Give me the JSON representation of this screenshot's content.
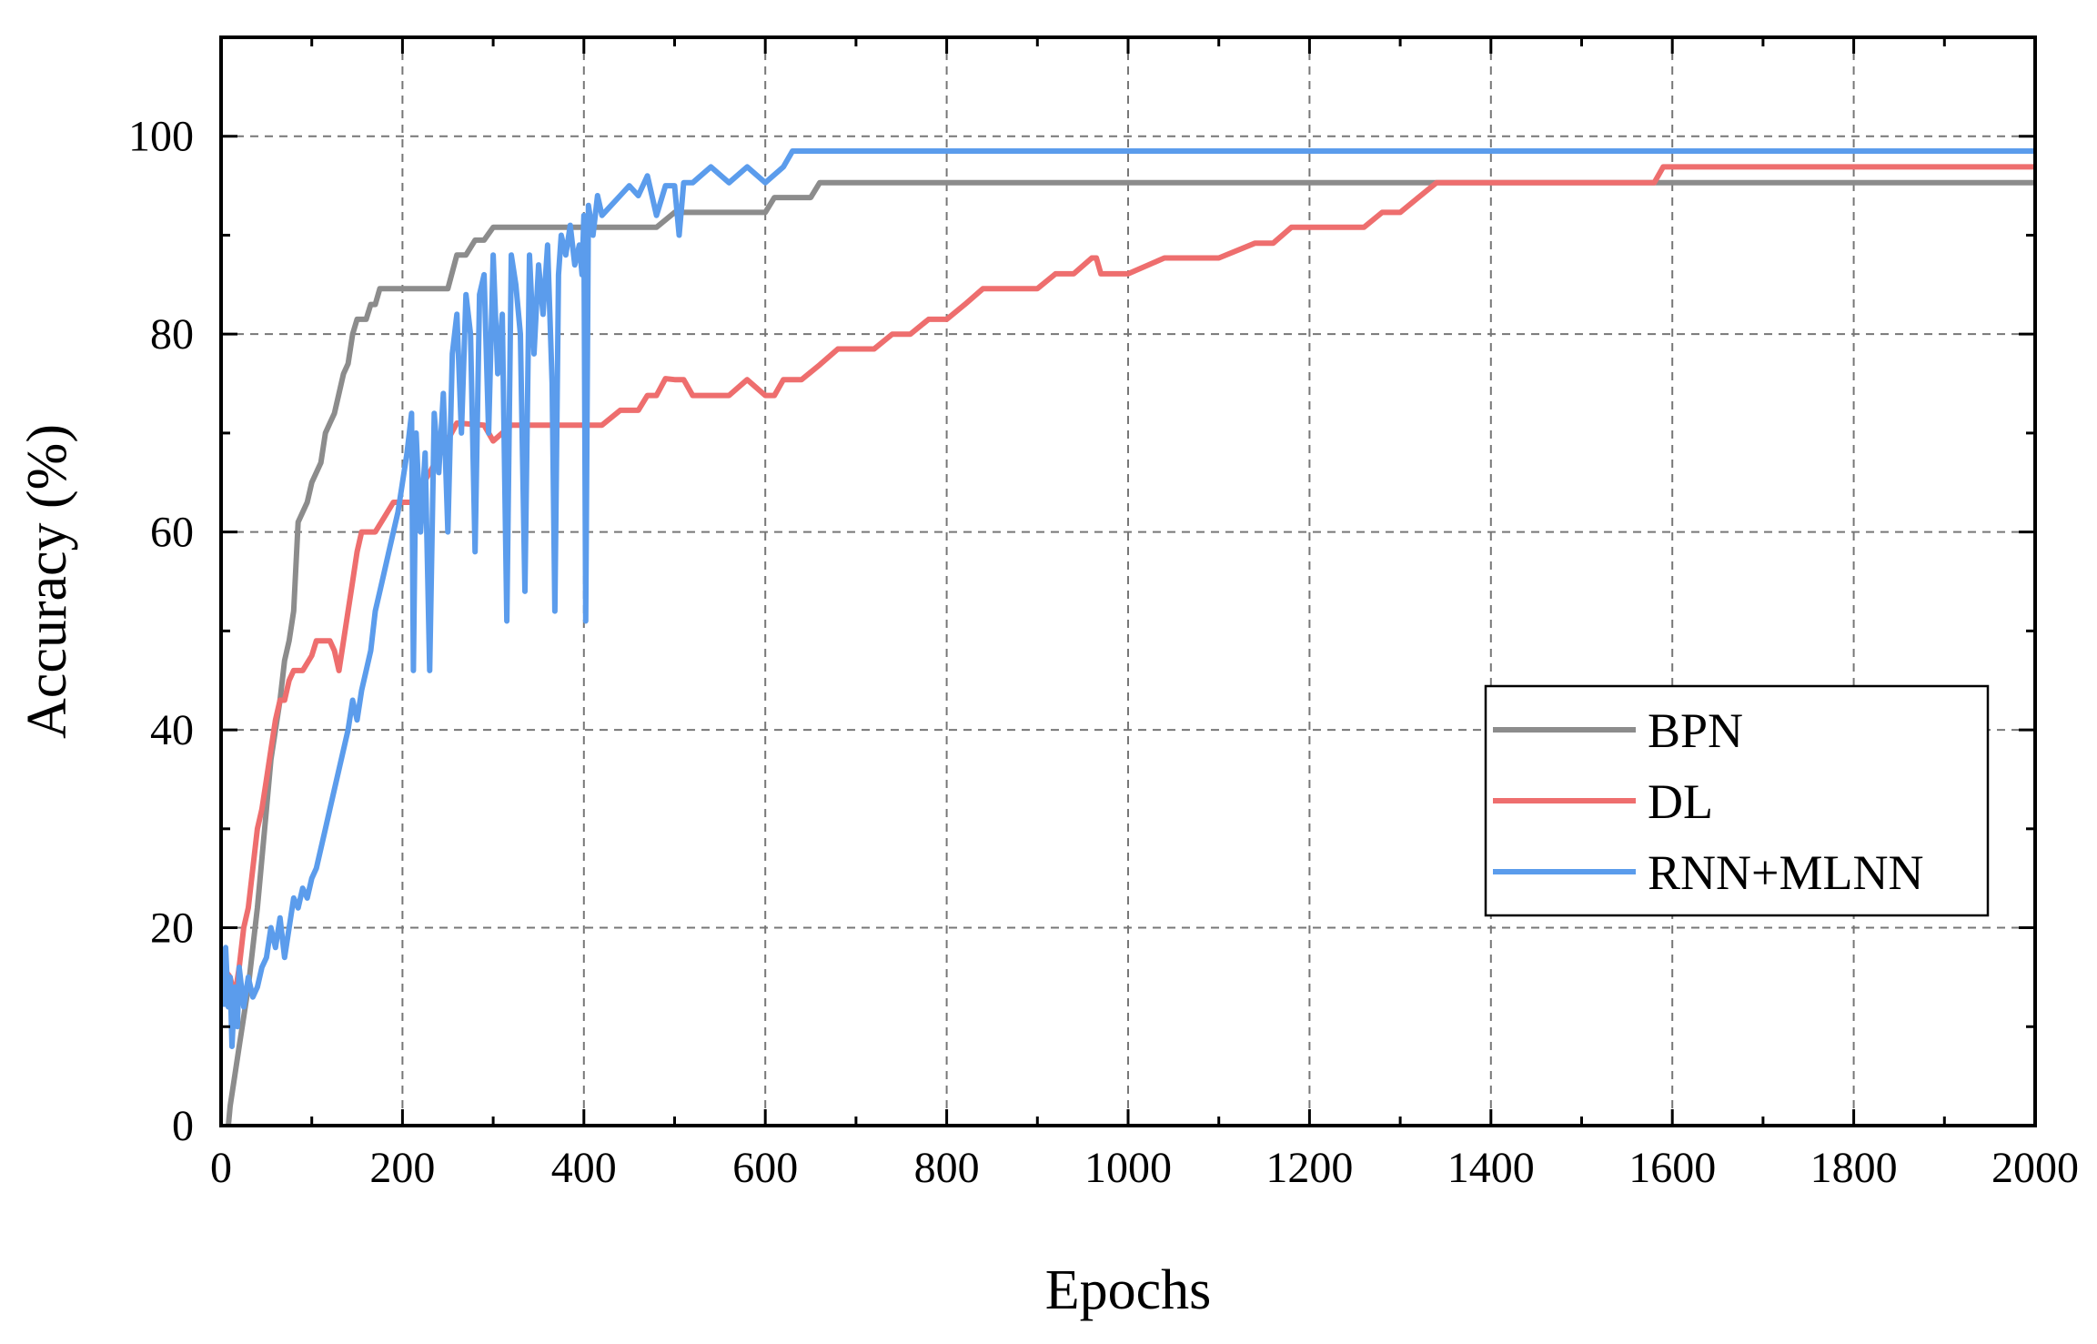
{
  "chart_data": {
    "type": "line",
    "xlabel": "Epochs",
    "ylabel": "Accuracy (%)",
    "xlim": [
      0,
      2000
    ],
    "ylim": [
      0,
      110
    ],
    "xticks": [
      0,
      200,
      400,
      600,
      800,
      1000,
      1200,
      1400,
      1600,
      1800,
      2000
    ],
    "yticks": [
      0,
      20,
      40,
      60,
      80,
      100
    ],
    "grid": true,
    "legend_position": "center-right",
    "series": [
      {
        "name": "BPN",
        "color": "#8c8c8c",
        "x": [
          8,
          10,
          15,
          20,
          25,
          30,
          35,
          40,
          45,
          50,
          55,
          60,
          65,
          70,
          75,
          80,
          85,
          90,
          95,
          100,
          110,
          115,
          120,
          125,
          130,
          135,
          140,
          145,
          150,
          160,
          165,
          170,
          175,
          180,
          250,
          260,
          270,
          280,
          290,
          300,
          320,
          400,
          480,
          500,
          550,
          600,
          610,
          650,
          660,
          700,
          1000,
          1500,
          2000
        ],
        "y": [
          0,
          2,
          5,
          8,
          11,
          14,
          18,
          22,
          27,
          32,
          37,
          40,
          43,
          47,
          49,
          52,
          61,
          62,
          63,
          65,
          67,
          70,
          71,
          72,
          74,
          76,
          77,
          80,
          81.5,
          81.5,
          83,
          83,
          84.6,
          84.6,
          84.6,
          88,
          88,
          89.5,
          89.5,
          90.8,
          90.8,
          90.8,
          90.8,
          92.3,
          92.3,
          92.3,
          93.8,
          93.8,
          95.3,
          95.3,
          95.3,
          95.3,
          95.3
        ]
      },
      {
        "name": "DL",
        "color": "#ee6e6e",
        "x": [
          2,
          10,
          15,
          20,
          25,
          30,
          35,
          40,
          45,
          50,
          55,
          60,
          65,
          70,
          75,
          80,
          90,
          100,
          105,
          110,
          120,
          125,
          130,
          140,
          145,
          150,
          155,
          160,
          170,
          180,
          190,
          200,
          210,
          230,
          260,
          290,
          300,
          320,
          340,
          360,
          380,
          420,
          440,
          460,
          470,
          480,
          490,
          500,
          510,
          520,
          540,
          560,
          580,
          600,
          610,
          620,
          640,
          660,
          680,
          700,
          720,
          740,
          760,
          780,
          800,
          820,
          840,
          860,
          880,
          900,
          920,
          940,
          960,
          965,
          970,
          1000,
          1040,
          1080,
          1100,
          1140,
          1160,
          1180,
          1200,
          1230,
          1260,
          1280,
          1300,
          1320,
          1340,
          1360,
          1400,
          1500,
          1580,
          1590,
          1600,
          1800,
          2000
        ],
        "y": [
          16,
          15,
          13,
          16,
          20,
          22,
          26,
          30,
          32,
          35,
          38,
          41,
          43,
          43,
          45,
          46,
          46,
          47.5,
          49,
          49,
          49,
          48,
          46,
          52,
          55,
          58,
          60,
          60,
          60,
          61.5,
          63,
          63,
          63,
          66,
          71,
          70.8,
          69.2,
          70.8,
          70.8,
          70.8,
          70.8,
          70.8,
          72.3,
          72.3,
          73.8,
          73.8,
          75.5,
          75.4,
          75.4,
          73.8,
          73.8,
          73.8,
          75.4,
          73.8,
          73.8,
          75.4,
          75.4,
          76.9,
          78.5,
          78.5,
          78.5,
          80,
          80,
          81.5,
          81.5,
          83,
          84.6,
          84.6,
          84.6,
          84.6,
          86.1,
          86.1,
          87.7,
          87.7,
          86.1,
          86.1,
          87.7,
          87.7,
          87.7,
          89.2,
          89.2,
          90.8,
          90.8,
          90.8,
          90.8,
          92.3,
          92.3,
          93.8,
          95.3,
          95.3,
          95.3,
          95.3,
          95.3,
          96.9,
          96.9,
          96.9,
          96.9
        ]
      },
      {
        "name": "RNN+MLNN",
        "color": "#5b9cec",
        "x": [
          2,
          5,
          8,
          10,
          12,
          15,
          18,
          20,
          25,
          30,
          35,
          40,
          45,
          50,
          55,
          60,
          65,
          70,
          75,
          80,
          85,
          90,
          95,
          100,
          105,
          110,
          115,
          120,
          125,
          130,
          135,
          140,
          145,
          150,
          155,
          160,
          165,
          170,
          175,
          180,
          185,
          190,
          195,
          200,
          205,
          210,
          212,
          215,
          220,
          225,
          230,
          235,
          240,
          245,
          250,
          255,
          260,
          265,
          270,
          275,
          280,
          285,
          290,
          295,
          300,
          305,
          310,
          315,
          320,
          325,
          330,
          335,
          340,
          345,
          350,
          355,
          360,
          365,
          368,
          372,
          375,
          380,
          385,
          390,
          395,
          398,
          400,
          402,
          405,
          410,
          415,
          420,
          430,
          440,
          450,
          460,
          470,
          480,
          490,
          500,
          505,
          510,
          515,
          520,
          540,
          560,
          580,
          600,
          620,
          630,
          640,
          700,
          800,
          1000,
          1500,
          2000
        ],
        "y": [
          12,
          18,
          12,
          15,
          8,
          14,
          10,
          16,
          12,
          15,
          13,
          14,
          16,
          17,
          20,
          18,
          21,
          17,
          20,
          23,
          22,
          24,
          23,
          25,
          26,
          28,
          30,
          32,
          34,
          36,
          38,
          40,
          43,
          41,
          44,
          46,
          48,
          52,
          54,
          56,
          58,
          60,
          62,
          65,
          68,
          72,
          46,
          70,
          60,
          68,
          46,
          72,
          66,
          74,
          60,
          78,
          82,
          70,
          84,
          80,
          58,
          84,
          86,
          70,
          88,
          76,
          82,
          51,
          88,
          85,
          80,
          54,
          88,
          78,
          87,
          82,
          89,
          75,
          52,
          86,
          90,
          88,
          91,
          87,
          89,
          86,
          92,
          51,
          93,
          90,
          94,
          92,
          93,
          94,
          95,
          94,
          96,
          92,
          95,
          95,
          90,
          95.3,
          95.3,
          95.3,
          96.9,
          95.3,
          96.9,
          95.3,
          96.9,
          98.5,
          98.5,
          98.5,
          98.5,
          98.5,
          98.5,
          98.5
        ]
      }
    ]
  }
}
